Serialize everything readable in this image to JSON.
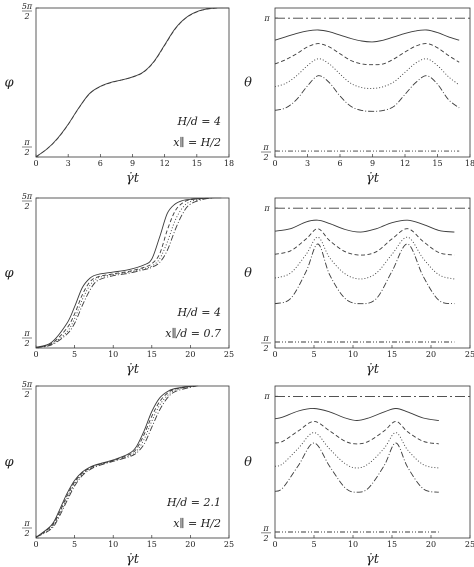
{
  "chart_data": [
    {
      "id": "a",
      "type": "line",
      "variable": "psi",
      "xlabel": "γ̇t",
      "ylabel": "φ",
      "xlim": [
        0,
        18
      ],
      "xticks": [
        0,
        3,
        6,
        9,
        12,
        15,
        18
      ],
      "ylim": [
        1.5708,
        7.854
      ],
      "yticks": [
        {
          "value": 1.5708,
          "num": "π",
          "den": "2"
        },
        {
          "value": 7.854,
          "num": "5π",
          "den": "2"
        }
      ],
      "annotation": [
        "H/d = 4",
        "x∥ = H/2"
      ],
      "series": [
        {
          "style": "solid",
          "x": [
            0,
            1,
            2,
            3,
            4,
            5,
            6,
            7,
            8,
            9,
            10,
            11,
            12,
            13,
            14,
            15,
            16,
            17,
            18
          ],
          "y": [
            1.58,
            1.9,
            2.35,
            2.95,
            3.65,
            4.25,
            4.55,
            4.72,
            4.82,
            4.95,
            5.15,
            5.6,
            6.3,
            7.0,
            7.45,
            7.7,
            7.82,
            7.85,
            7.86
          ]
        },
        {
          "style": "dashed",
          "x": [
            0,
            1,
            2,
            3,
            4,
            5,
            6,
            7,
            8,
            9,
            10,
            11,
            12,
            13,
            14,
            15,
            16,
            17,
            18
          ],
          "y": [
            1.58,
            1.9,
            2.34,
            2.94,
            3.64,
            4.24,
            4.54,
            4.71,
            4.82,
            4.94,
            5.14,
            5.58,
            6.28,
            6.98,
            7.44,
            7.69,
            7.81,
            7.85,
            7.86
          ]
        }
      ]
    },
    {
      "id": "b",
      "type": "line",
      "variable": "theta",
      "xlabel": "γ̇t",
      "ylabel": "θ",
      "xlim": [
        0,
        18
      ],
      "xticks": [
        0,
        3,
        6,
        9,
        12,
        15,
        18
      ],
      "ylim": [
        1.5,
        3.26
      ],
      "yticks": [
        {
          "value": 3.1416,
          "label": "π"
        },
        {
          "value": 1.5708,
          "num": "π",
          "den": "2"
        }
      ],
      "series": [
        {
          "style": "long-dash-dot",
          "x": [
            0,
            18
          ],
          "y": [
            3.14,
            3.14
          ]
        },
        {
          "style": "solid",
          "x": [
            0,
            1,
            2,
            3,
            4,
            5,
            6,
            7,
            8,
            9,
            10,
            11,
            12,
            13,
            14,
            15,
            16,
            17
          ],
          "y": [
            2.88,
            2.92,
            2.96,
            2.99,
            3.0,
            2.98,
            2.94,
            2.9,
            2.87,
            2.86,
            2.88,
            2.92,
            2.96,
            2.99,
            3.0,
            2.97,
            2.92,
            2.88
          ]
        },
        {
          "style": "dashed",
          "x": [
            0,
            1,
            2,
            3,
            4,
            5,
            6,
            7,
            8,
            9,
            10,
            11,
            12,
            13,
            14,
            15,
            16,
            17
          ],
          "y": [
            2.6,
            2.65,
            2.72,
            2.8,
            2.84,
            2.8,
            2.72,
            2.64,
            2.6,
            2.59,
            2.6,
            2.66,
            2.74,
            2.81,
            2.84,
            2.79,
            2.7,
            2.62
          ]
        },
        {
          "style": "dotted",
          "x": [
            0,
            1,
            2,
            3,
            4,
            5,
            6,
            7,
            8,
            9,
            10,
            11,
            12,
            13,
            14,
            15,
            16,
            17
          ],
          "y": [
            2.33,
            2.37,
            2.46,
            2.58,
            2.66,
            2.6,
            2.48,
            2.37,
            2.32,
            2.31,
            2.33,
            2.39,
            2.5,
            2.61,
            2.66,
            2.58,
            2.45,
            2.35
          ]
        },
        {
          "style": "dash-dot",
          "x": [
            0,
            1,
            2,
            3,
            4,
            5,
            6,
            7,
            8,
            9,
            10,
            11,
            12,
            13,
            14,
            15,
            16,
            17
          ],
          "y": [
            2.05,
            2.08,
            2.18,
            2.34,
            2.46,
            2.38,
            2.22,
            2.1,
            2.05,
            2.04,
            2.05,
            2.1,
            2.24,
            2.38,
            2.46,
            2.36,
            2.18,
            2.08
          ]
        },
        {
          "style": "dash-dot-dot",
          "x": [
            0,
            17
          ],
          "y": [
            1.57,
            1.57
          ]
        }
      ]
    },
    {
      "id": "c",
      "type": "line",
      "variable": "psi",
      "xlabel": "γ̇t",
      "ylabel": "φ",
      "xlim": [
        0,
        25
      ],
      "xticks": [
        0,
        5,
        10,
        15,
        20,
        25
      ],
      "ylim": [
        1.5708,
        7.854
      ],
      "yticks": [
        {
          "value": 1.5708,
          "num": "π",
          "den": "2"
        },
        {
          "value": 7.854,
          "num": "5π",
          "den": "2"
        }
      ],
      "annotation": [
        "H/d = 4",
        "x∥/d = 0.7"
      ],
      "series": [
        {
          "style": "solid",
          "x": [
            0,
            2,
            4,
            5,
            6,
            7,
            8,
            10,
            12,
            14,
            15,
            16,
            17,
            18,
            19,
            20,
            22,
            24
          ],
          "y": [
            1.6,
            1.8,
            2.6,
            3.3,
            4.1,
            4.5,
            4.65,
            4.75,
            4.85,
            5.05,
            5.3,
            6.2,
            7.2,
            7.6,
            7.75,
            7.8,
            7.84,
            7.86
          ]
        },
        {
          "style": "dashed",
          "x": [
            0,
            2,
            4,
            5,
            6,
            7,
            8,
            10,
            12,
            14,
            15,
            16,
            17,
            18,
            19,
            20,
            22,
            24
          ],
          "y": [
            1.6,
            1.75,
            2.4,
            3.0,
            3.8,
            4.35,
            4.55,
            4.68,
            4.78,
            4.95,
            5.1,
            5.5,
            6.5,
            7.3,
            7.65,
            7.78,
            7.84,
            7.86
          ]
        },
        {
          "style": "dotted",
          "x": [
            0,
            2,
            4,
            5,
            6,
            7,
            8,
            10,
            12,
            14,
            15,
            16,
            17,
            18,
            19,
            20,
            22,
            24
          ],
          "y": [
            1.6,
            1.72,
            2.25,
            2.8,
            3.6,
            4.2,
            4.5,
            4.65,
            4.74,
            4.9,
            5.0,
            5.3,
            6.0,
            6.9,
            7.45,
            7.7,
            7.83,
            7.86
          ]
        },
        {
          "style": "dash-dot",
          "x": [
            0,
            2,
            4,
            5,
            6,
            7,
            8,
            10,
            12,
            14,
            15,
            16,
            17,
            18,
            19,
            20,
            22,
            24
          ],
          "y": [
            1.6,
            1.7,
            2.15,
            2.6,
            3.35,
            4.0,
            4.4,
            4.6,
            4.7,
            4.85,
            4.95,
            5.15,
            5.65,
            6.5,
            7.2,
            7.6,
            7.82,
            7.86
          ]
        }
      ]
    },
    {
      "id": "d",
      "type": "line",
      "variable": "theta",
      "xlabel": "γ̇t",
      "ylabel": "θ",
      "xlim": [
        0,
        25
      ],
      "xticks": [
        0,
        5,
        10,
        15,
        20,
        25
      ],
      "ylim": [
        1.5,
        3.26
      ],
      "yticks": [
        {
          "value": 3.1416,
          "label": "π"
        },
        {
          "value": 1.5708,
          "num": "π",
          "den": "2"
        }
      ],
      "series": [
        {
          "style": "long-dash-dot",
          "x": [
            0,
            25
          ],
          "y": [
            3.14,
            3.14
          ]
        },
        {
          "style": "solid",
          "x": [
            0,
            2,
            4,
            5.5,
            7,
            9,
            11,
            13,
            15,
            17,
            19,
            21,
            23
          ],
          "y": [
            2.87,
            2.9,
            2.98,
            3.0,
            2.96,
            2.89,
            2.86,
            2.9,
            2.97,
            3.0,
            2.95,
            2.88,
            2.86
          ]
        },
        {
          "style": "dashed",
          "x": [
            0,
            2,
            4,
            5.5,
            7,
            9,
            11,
            13,
            15,
            17,
            19,
            21,
            23
          ],
          "y": [
            2.6,
            2.64,
            2.78,
            2.9,
            2.76,
            2.63,
            2.59,
            2.63,
            2.78,
            2.9,
            2.75,
            2.62,
            2.59
          ]
        },
        {
          "style": "dotted",
          "x": [
            0,
            2,
            4,
            5.5,
            7,
            9,
            11,
            13,
            15,
            17,
            19,
            21,
            23
          ],
          "y": [
            2.32,
            2.38,
            2.6,
            2.8,
            2.56,
            2.37,
            2.31,
            2.38,
            2.6,
            2.8,
            2.55,
            2.36,
            2.31
          ]
        },
        {
          "style": "dash-dot",
          "x": [
            0,
            2,
            4,
            5.5,
            7,
            9,
            11,
            13,
            15,
            17,
            19,
            21,
            23
          ],
          "y": [
            2.02,
            2.08,
            2.4,
            2.72,
            2.36,
            2.08,
            2.02,
            2.08,
            2.4,
            2.72,
            2.34,
            2.06,
            2.02
          ]
        },
        {
          "style": "dash-dot-dot",
          "x": [
            0,
            23
          ],
          "y": [
            1.57,
            1.57
          ]
        }
      ]
    },
    {
      "id": "e",
      "type": "line",
      "variable": "psi",
      "xlabel": "γ̇t",
      "ylabel": "φ",
      "xlim": [
        0,
        25
      ],
      "xticks": [
        0,
        5,
        10,
        15,
        20,
        25
      ],
      "ylim": [
        1.5708,
        7.854
      ],
      "yticks": [
        {
          "value": 1.5708,
          "num": "π",
          "den": "2"
        },
        {
          "value": 7.854,
          "num": "5π",
          "den": "2"
        }
      ],
      "annotation": [
        "H/d = 2.1",
        "x∥ = H/2"
      ],
      "series": [
        {
          "style": "solid",
          "x": [
            0,
            2,
            3,
            4,
            5,
            6,
            7,
            8,
            10,
            12,
            13,
            14,
            15,
            16,
            17,
            18,
            20,
            21
          ],
          "y": [
            1.6,
            2.1,
            2.7,
            3.4,
            3.95,
            4.3,
            4.5,
            4.62,
            4.8,
            5.05,
            5.35,
            6.0,
            6.8,
            7.35,
            7.62,
            7.75,
            7.84,
            7.86
          ]
        },
        {
          "style": "dashed",
          "x": [
            0,
            2,
            3,
            4,
            5,
            6,
            7,
            8,
            10,
            12,
            13,
            14,
            15,
            16,
            17,
            18,
            20,
            21
          ],
          "y": [
            1.6,
            2.05,
            2.6,
            3.3,
            3.88,
            4.25,
            4.47,
            4.6,
            4.78,
            5.0,
            5.25,
            5.85,
            6.6,
            7.2,
            7.55,
            7.72,
            7.83,
            7.86
          ]
        },
        {
          "style": "dotted",
          "x": [
            0,
            2,
            3,
            4,
            5,
            6,
            7,
            8,
            10,
            12,
            13,
            14,
            15,
            16,
            17,
            18,
            20,
            21
          ],
          "y": [
            1.6,
            2.0,
            2.52,
            3.2,
            3.8,
            4.2,
            4.44,
            4.58,
            4.76,
            4.96,
            5.15,
            5.65,
            6.4,
            7.05,
            7.45,
            7.68,
            7.82,
            7.86
          ]
        },
        {
          "style": "dash-dot",
          "x": [
            0,
            2,
            3,
            4,
            5,
            6,
            7,
            8,
            10,
            12,
            13,
            14,
            15,
            16,
            17,
            18,
            20,
            21
          ],
          "y": [
            1.6,
            1.95,
            2.45,
            3.1,
            3.72,
            4.15,
            4.4,
            4.55,
            4.74,
            4.92,
            5.08,
            5.45,
            6.15,
            6.85,
            7.35,
            7.62,
            7.8,
            7.86
          ]
        }
      ]
    },
    {
      "id": "f",
      "type": "line",
      "variable": "theta",
      "xlabel": "γ̇t",
      "ylabel": "θ",
      "xlim": [
        0,
        25
      ],
      "xticks": [
        0,
        5,
        10,
        15,
        20,
        25
      ],
      "ylim": [
        1.5,
        3.26
      ],
      "yticks": [
        {
          "value": 3.1416,
          "label": "π"
        },
        {
          "value": 1.5708,
          "num": "π",
          "den": "2"
        }
      ],
      "series": [
        {
          "style": "long-dash-dot",
          "x": [
            0,
            25
          ],
          "y": [
            3.14,
            3.14
          ]
        },
        {
          "style": "solid",
          "x": [
            0,
            1,
            3,
            5,
            7,
            9,
            10.5,
            12,
            14,
            15.5,
            17,
            19,
            21
          ],
          "y": [
            2.88,
            2.9,
            2.97,
            3.0,
            2.96,
            2.89,
            2.86,
            2.89,
            2.96,
            3.0,
            2.96,
            2.89,
            2.86
          ]
        },
        {
          "style": "dashed",
          "x": [
            0,
            1,
            3,
            5,
            7,
            9,
            10.5,
            12,
            14,
            15.5,
            17,
            19,
            21
          ],
          "y": [
            2.6,
            2.62,
            2.74,
            2.85,
            2.74,
            2.62,
            2.59,
            2.62,
            2.74,
            2.85,
            2.73,
            2.62,
            2.59
          ]
        },
        {
          "style": "dotted",
          "x": [
            0,
            1,
            3,
            5,
            7,
            9,
            10.5,
            12,
            14,
            15.5,
            17,
            19,
            21
          ],
          "y": [
            2.33,
            2.36,
            2.54,
            2.72,
            2.53,
            2.36,
            2.31,
            2.36,
            2.54,
            2.72,
            2.52,
            2.35,
            2.31
          ]
        },
        {
          "style": "dash-dot",
          "x": [
            0,
            1,
            3,
            5,
            7,
            9,
            10.5,
            12,
            14,
            15.5,
            17,
            19,
            21
          ],
          "y": [
            2.04,
            2.08,
            2.34,
            2.6,
            2.33,
            2.08,
            2.03,
            2.08,
            2.34,
            2.6,
            2.32,
            2.07,
            2.03
          ]
        },
        {
          "style": "dash-dot-dot",
          "x": [
            0,
            21
          ],
          "y": [
            1.57,
            1.57
          ]
        }
      ]
    }
  ]
}
